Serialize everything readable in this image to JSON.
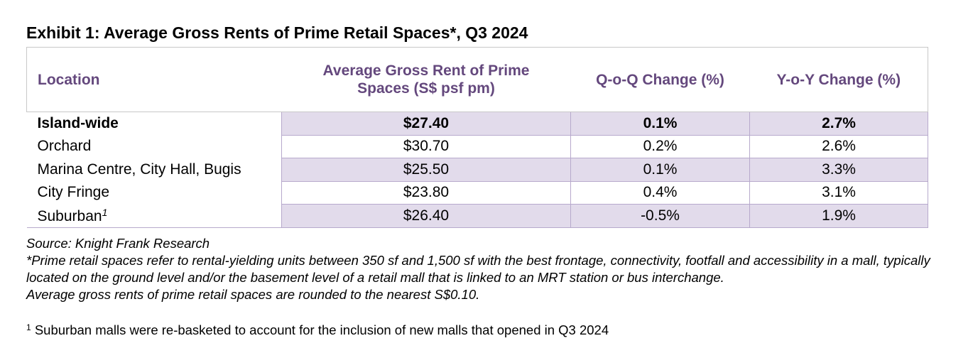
{
  "title": "Exhibit 1: Average Gross Rents of Prime Retail Spaces*, Q3 2024",
  "table": {
    "headers": {
      "location": "Location",
      "rent_line1": "Average Gross Rent of Prime",
      "rent_line2": "Spaces (S$ psf pm)",
      "qoq": "Q-o-Q Change (%)",
      "yoy": "Y-o-Y Change (%)"
    },
    "rows": [
      {
        "location": "Island-wide",
        "rent": "$27.40",
        "qoq": "0.1%",
        "yoy": "2.7%"
      },
      {
        "location": "Orchard",
        "rent": "$30.70",
        "qoq": "0.2%",
        "yoy": "2.6%"
      },
      {
        "location": "Marina Centre, City Hall, Bugis",
        "rent": "$25.50",
        "qoq": "0.1%",
        "yoy": "3.3%"
      },
      {
        "location": "City Fringe",
        "rent": "$23.80",
        "qoq": "0.4%",
        "yoy": "3.1%"
      },
      {
        "location": "Suburban",
        "footnote_mark": "1",
        "rent": "$26.40",
        "qoq": "-0.5%",
        "yoy": "1.9%"
      }
    ]
  },
  "notes": {
    "source": "Source: Knight Frank Research",
    "definition": "*Prime retail spaces refer to rental-yielding units between 350 sf and 1,500 sf with the best frontage, connectivity, footfall and accessibility in a mall, typically located on the ground level and/or the basement level of a retail mall that is linked to an MRT station or bus interchange.",
    "rounding": "Average gross rents of prime retail spaces are rounded to the nearest S$0.10."
  },
  "footnote": {
    "mark": "1",
    "text": " Suburban malls were re-basketed to account for the inclusion of new malls that opened in Q3 2024"
  },
  "colors": {
    "header_text": "#64487d",
    "row_shade": "#e2dbeb",
    "cell_border": "#b7a9cc"
  }
}
